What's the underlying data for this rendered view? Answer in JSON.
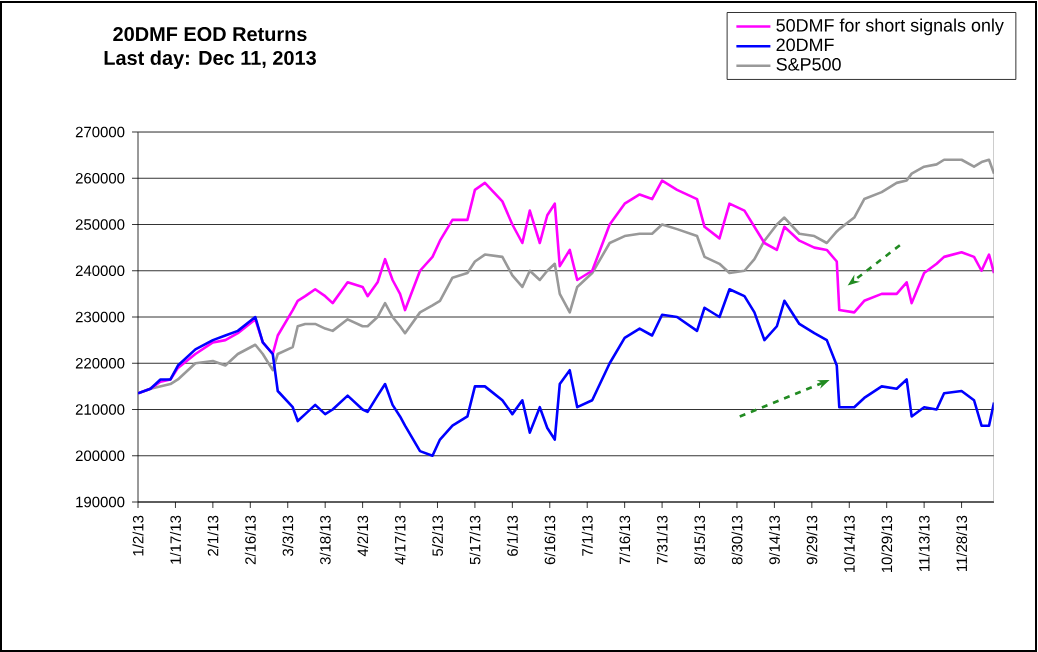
{
  "chart_data": {
    "type": "line",
    "title": "20DMF EOD Returns",
    "subtitle": "Last day: Dec 11, 2013",
    "x": [
      "2013-01-02",
      "2013-01-07",
      "2013-01-11",
      "2013-01-15",
      "2013-01-18",
      "2013-01-25",
      "2013-02-01",
      "2013-02-06",
      "2013-02-11",
      "2013-02-18",
      "2013-02-21",
      "2013-02-25",
      "2013-02-27",
      "2013-03-05",
      "2013-03-07",
      "2013-03-10",
      "2013-03-14",
      "2013-03-18",
      "2013-03-21",
      "2013-03-27",
      "2013-04-02",
      "2013-04-04",
      "2013-04-08",
      "2013-04-11",
      "2013-04-14",
      "2013-04-17",
      "2013-04-19",
      "2013-04-25",
      "2013-04-30",
      "2013-05-03",
      "2013-05-08",
      "2013-05-14",
      "2013-05-17",
      "2013-05-21",
      "2013-05-28",
      "2013-06-01",
      "2013-06-05",
      "2013-06-08",
      "2013-06-12",
      "2013-06-15",
      "2013-06-18",
      "2013-06-20",
      "2013-06-24",
      "2013-06-27",
      "2013-07-03",
      "2013-07-10",
      "2013-07-16",
      "2013-07-22",
      "2013-07-27",
      "2013-07-31",
      "2013-08-06",
      "2013-08-14",
      "2013-08-17",
      "2013-08-23",
      "2013-08-27",
      "2013-09-02",
      "2013-09-06",
      "2013-09-10",
      "2013-09-15",
      "2013-09-18",
      "2013-09-24",
      "2013-09-30",
      "2013-10-05",
      "2013-10-09",
      "2013-10-10",
      "2013-10-16",
      "2013-10-20",
      "2013-10-27",
      "2013-11-02",
      "2013-11-06",
      "2013-11-08",
      "2013-11-13",
      "2013-11-18",
      "2013-11-21",
      "2013-11-28",
      "2013-12-03",
      "2013-12-06",
      "2013-12-09",
      "2013-12-11"
    ],
    "series": [
      {
        "name": "50DMF for short signals only",
        "color": "#ff00ff",
        "values": [
          213500,
          214500,
          216000,
          216500,
          219000,
          222000,
          224500,
          225000,
          226500,
          229500,
          224500,
          222000,
          226000,
          231500,
          233500,
          234500,
          236000,
          234500,
          233000,
          237500,
          236500,
          234500,
          237500,
          242500,
          238000,
          235000,
          231500,
          240000,
          243000,
          246500,
          251000,
          251000,
          257500,
          259000,
          255000,
          250000,
          246000,
          253000,
          246000,
          252000,
          254500,
          241000,
          244500,
          238000,
          240000,
          250000,
          254500,
          256500,
          255500,
          259500,
          257500,
          255500,
          249500,
          247000,
          254500,
          253000,
          249500,
          246000,
          244500,
          249500,
          246500,
          245000,
          244500,
          242000,
          231500,
          231000,
          233500,
          235000,
          235000,
          237500,
          233000,
          239500,
          241500,
          243000,
          244000,
          243000,
          240000,
          243500,
          239500
        ]
      },
      {
        "name": "20DMF",
        "color": "#0000ff",
        "values": [
          213500,
          214500,
          216500,
          216500,
          219500,
          223000,
          225000,
          226000,
          227000,
          230000,
          224500,
          222000,
          214000,
          210500,
          207500,
          209000,
          211000,
          209000,
          210000,
          213000,
          210000,
          209500,
          213000,
          215500,
          211000,
          208500,
          206500,
          201000,
          200000,
          203500,
          206500,
          208500,
          215000,
          215000,
          212000,
          209000,
          212000,
          205000,
          210500,
          206000,
          203500,
          215500,
          218500,
          210500,
          212000,
          220000,
          225500,
          227500,
          226000,
          230500,
          230000,
          227000,
          232000,
          230000,
          236000,
          234500,
          231000,
          225000,
          228000,
          233500,
          228500,
          226500,
          225000,
          219500,
          210500,
          210500,
          212500,
          215000,
          214500,
          216500,
          208500,
          210500,
          210000,
          213500,
          214000,
          212000,
          206500,
          206500,
          211500
        ]
      },
      {
        "name": "S&P500",
        "color": "#999999",
        "values": [
          213500,
          214500,
          215000,
          215500,
          216500,
          220000,
          220500,
          219500,
          222000,
          224000,
          222000,
          218500,
          222000,
          223500,
          228000,
          228500,
          228500,
          227500,
          227000,
          229500,
          228000,
          228000,
          230000,
          233000,
          230000,
          228000,
          226500,
          231000,
          232500,
          233500,
          238500,
          239500,
          242000,
          243500,
          243000,
          239000,
          236500,
          240000,
          238000,
          240000,
          241500,
          235000,
          231000,
          236500,
          239500,
          246000,
          247500,
          248000,
          248000,
          250000,
          249000,
          247500,
          243000,
          241500,
          239500,
          240000,
          242500,
          246500,
          250000,
          251500,
          248000,
          247500,
          246000,
          248500,
          249000,
          251500,
          255500,
          257000,
          259000,
          259500,
          261000,
          262500,
          263000,
          264000,
          264000,
          262500,
          263500,
          264000,
          261000
        ]
      }
    ],
    "xlim": [
      "2013-01-02",
      "2013-12-11"
    ],
    "xticks": [
      {
        "value": "2013-01-02",
        "label": "1/2/13"
      },
      {
        "value": "2013-01-17",
        "label": "1/17/13"
      },
      {
        "value": "2013-02-01",
        "label": "2/1/13"
      },
      {
        "value": "2013-02-16",
        "label": "2/16/13"
      },
      {
        "value": "2013-03-03",
        "label": "3/3/13"
      },
      {
        "value": "2013-03-18",
        "label": "3/18/13"
      },
      {
        "value": "2013-04-02",
        "label": "4/2/13"
      },
      {
        "value": "2013-04-17",
        "label": "4/17/13"
      },
      {
        "value": "2013-05-02",
        "label": "5/2/13"
      },
      {
        "value": "2013-05-17",
        "label": "5/17/13"
      },
      {
        "value": "2013-06-01",
        "label": "6/1/13"
      },
      {
        "value": "2013-06-16",
        "label": "6/16/13"
      },
      {
        "value": "2013-07-01",
        "label": "7/1/13"
      },
      {
        "value": "2013-07-16",
        "label": "7/16/13"
      },
      {
        "value": "2013-07-31",
        "label": "7/31/13"
      },
      {
        "value": "2013-08-15",
        "label": "8/15/13"
      },
      {
        "value": "2013-08-30",
        "label": "8/30/13"
      },
      {
        "value": "2013-09-14",
        "label": "9/14/13"
      },
      {
        "value": "2013-09-29",
        "label": "9/29/13"
      },
      {
        "value": "2013-10-14",
        "label": "10/14/13"
      },
      {
        "value": "2013-10-29",
        "label": "10/29/13"
      },
      {
        "value": "2013-11-13",
        "label": "11/13/13"
      },
      {
        "value": "2013-11-28",
        "label": "11/28/13"
      }
    ],
    "ylim": [
      190000,
      270000
    ],
    "yticks": [
      190000,
      200000,
      210000,
      220000,
      230000,
      240000,
      250000,
      260000,
      270000
    ],
    "grid": "y",
    "legend": "top right",
    "line_style": "solid"
  }
}
